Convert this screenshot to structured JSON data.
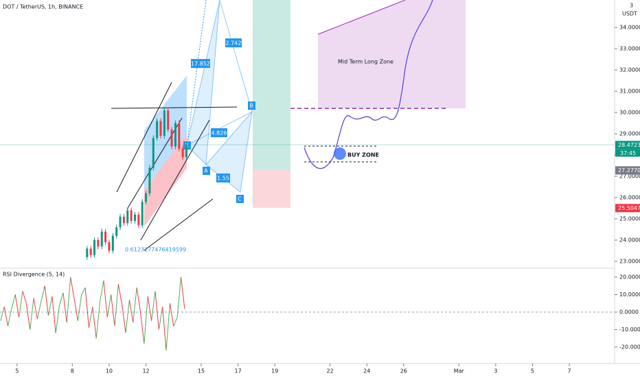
{
  "header": {
    "title": "DOT / TetherUS, 1h, BINANCE"
  },
  "price_chart": {
    "unit": "USDT",
    "top_label": "3",
    "ylim": [
      22.71,
      35.29
    ],
    "yticks": [
      {
        "value": 23,
        "label": "23.0000"
      },
      {
        "value": 24,
        "label": "24.0000"
      },
      {
        "value": 25,
        "label": "25.0000"
      },
      {
        "value": 26,
        "label": "26.0000"
      },
      {
        "value": 27,
        "label": "27.0000"
      },
      {
        "value": 28,
        "label": "28.0000"
      },
      {
        "value": 29,
        "label": "29.0000"
      },
      {
        "value": 30,
        "label": "30.0000"
      },
      {
        "value": 31,
        "label": "31.0000"
      },
      {
        "value": 32,
        "label": "32.0000"
      },
      {
        "value": 33,
        "label": "33.0000"
      },
      {
        "value": 34,
        "label": "34.0000"
      }
    ],
    "x": [
      8.6,
      8.8,
      9.0,
      9.2,
      9.4,
      9.6,
      9.8,
      10.0,
      10.2,
      10.4,
      10.6,
      10.8,
      11.0,
      11.2,
      11.4,
      11.6,
      11.8,
      12.0,
      12.2,
      12.4,
      12.6,
      12.8,
      13.0,
      13.2,
      13.4,
      13.6,
      13.8,
      14.0,
      14.2
    ],
    "close": [
      23.2,
      23.6,
      23.3,
      24.0,
      23.7,
      24.4,
      23.9,
      23.5,
      24.2,
      24.6,
      25.1,
      24.8,
      25.4,
      24.9,
      25.2,
      24.7,
      25.8,
      26.2,
      27.4,
      28.8,
      29.6,
      28.9,
      30.1,
      29.2,
      28.4,
      29.5,
      28.3,
      27.9,
      28.47
    ],
    "price_tags": [
      {
        "value": 28.4723,
        "label": "28.4723",
        "color": "#089981"
      },
      {
        "value": 27.277,
        "label": "27.2770",
        "color": "#787b86"
      },
      {
        "value": 25.5047,
        "label": "25.5047",
        "color": "#f23645"
      }
    ],
    "countdown": "37:45"
  },
  "rsi": {
    "title": "RSI Divergence (5, 14)",
    "ylim": [
      -29.4,
      24.7
    ],
    "yticks": [
      {
        "value": 20,
        "label": "20.0000"
      },
      {
        "value": 10,
        "label": "10.0000"
      },
      {
        "value": 0,
        "label": "0.0000"
      },
      {
        "value": -10,
        "label": "-10.0000"
      },
      {
        "value": -20,
        "label": "-20.0000"
      }
    ],
    "x": [
      4.1,
      4.3,
      4.5,
      4.7,
      4.9,
      5.1,
      5.3,
      5.5,
      5.7,
      5.9,
      6.1,
      6.3,
      6.5,
      6.7,
      6.9,
      7.1,
      7.3,
      7.5,
      7.7,
      7.9,
      8.1,
      8.3,
      8.5,
      8.7,
      8.9,
      9.1,
      9.3,
      9.5,
      9.7,
      9.9,
      10.1,
      10.3,
      10.5,
      10.7,
      10.9,
      11.1,
      11.3,
      11.5,
      11.7,
      11.9,
      12.1,
      12.3,
      12.5,
      12.7,
      12.9,
      13.1,
      13.3,
      13.5,
      13.7,
      13.9,
      14.1
    ],
    "values": [
      -5,
      3,
      -8,
      2,
      10,
      -3,
      12,
      5,
      -10,
      8,
      -4,
      6,
      15,
      -2,
      9,
      -12,
      4,
      11,
      -6,
      20,
      8,
      -5,
      10,
      14,
      -9,
      3,
      -15,
      6,
      18,
      -3,
      10,
      -8,
      16,
      4,
      -12,
      7,
      -6,
      14,
      0,
      -18,
      9,
      -5,
      12,
      -10,
      3,
      -22,
      5,
      -8,
      -3,
      20,
      2
    ],
    "up_color": "#4caf50",
    "down_color": "#f23645"
  },
  "time_axis": {
    "xlim": [
      4.07,
      37.46
    ],
    "xticks": [
      5,
      8,
      10,
      12,
      15,
      17,
      19,
      22,
      24,
      26,
      {
        "value": 29,
        "label": "Mar"
      },
      {
        "value": 31,
        "label": "3"
      },
      {
        "value": 33,
        "label": "5"
      },
      {
        "value": 35,
        "label": "7"
      }
    ]
  },
  "drawings": {
    "fib_label": "0.6123277476419599",
    "ratio_1": "17.852",
    "ratio_2": "2.742",
    "ratio_3": "4.826",
    "ratio_4": "1.55",
    "point_a": "A",
    "point_b": "B",
    "point_c": "C",
    "point_x": "X",
    "buy_zone": "BUY ZONE",
    "long_zone": "Mid Term Long Zone"
  }
}
